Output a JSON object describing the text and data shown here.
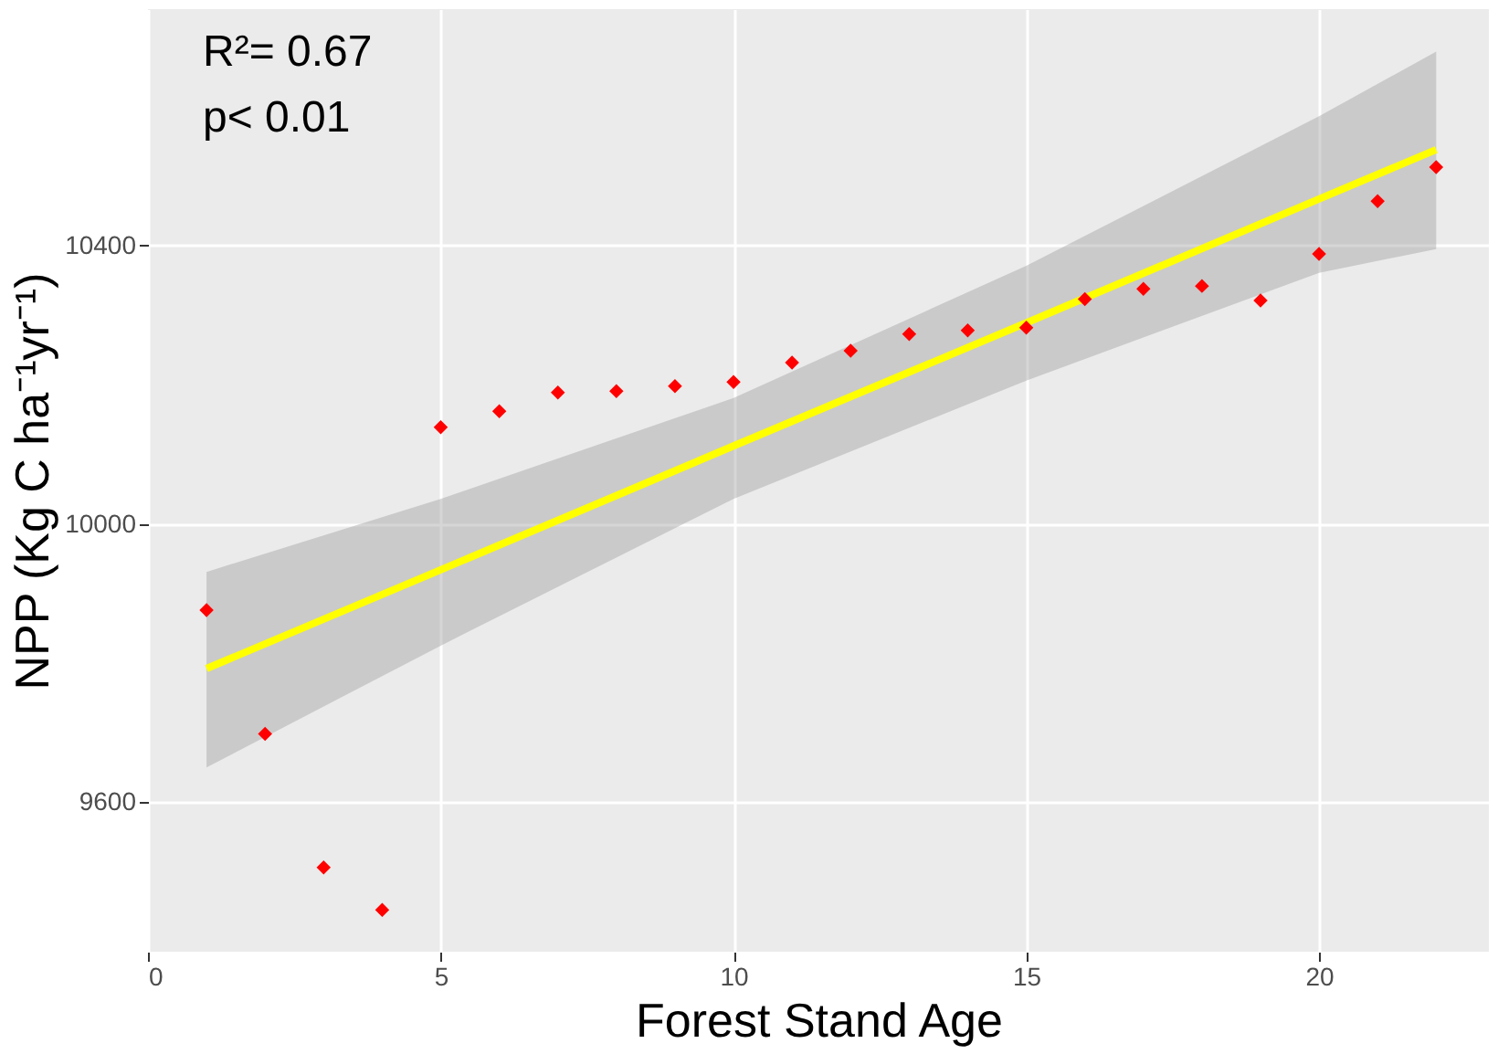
{
  "chart_data": {
    "type": "scatter",
    "xlabel": "Forest Stand Age",
    "ylabel": "NPP (Kg C ha⁻¹yr⁻¹)",
    "annotations": [
      "R²= 0.67",
      "p< 0.01"
    ],
    "xlim": [
      0,
      22.9
    ],
    "ylim": [
      9385,
      10740
    ],
    "xticks": [
      0,
      5,
      10,
      15,
      20
    ],
    "yticks": [
      9600,
      10000,
      10400
    ],
    "grid": true,
    "series": [
      {
        "color": "#ff0000",
        "marker": "diamond",
        "x": [
          1,
          2,
          3,
          4,
          5,
          6,
          7,
          8,
          9,
          10,
          11,
          12,
          13,
          14,
          15,
          16,
          17,
          18,
          19,
          20,
          21,
          22
        ],
        "values": [
          9876,
          9698,
          9506,
          9445,
          10139,
          10162,
          10189,
          10191,
          10198,
          10204,
          10232,
          10249,
          10273,
          10278,
          10282,
          10323,
          10338,
          10342,
          10321,
          10388,
          10464,
          10513
        ]
      },
      {
        "type": "line",
        "color": "#ffff00",
        "marker": "none",
        "x": [
          1,
          5,
          10,
          15,
          20,
          22
        ],
        "values": [
          9792,
          9934,
          10112,
          10289,
          10467,
          10538
        ],
        "lower": [
          9650,
          9825,
          10036,
          10206,
          10361,
          10395
        ],
        "upper": [
          9931,
          10036,
          10181,
          10371,
          10586,
          10679
        ]
      }
    ]
  }
}
